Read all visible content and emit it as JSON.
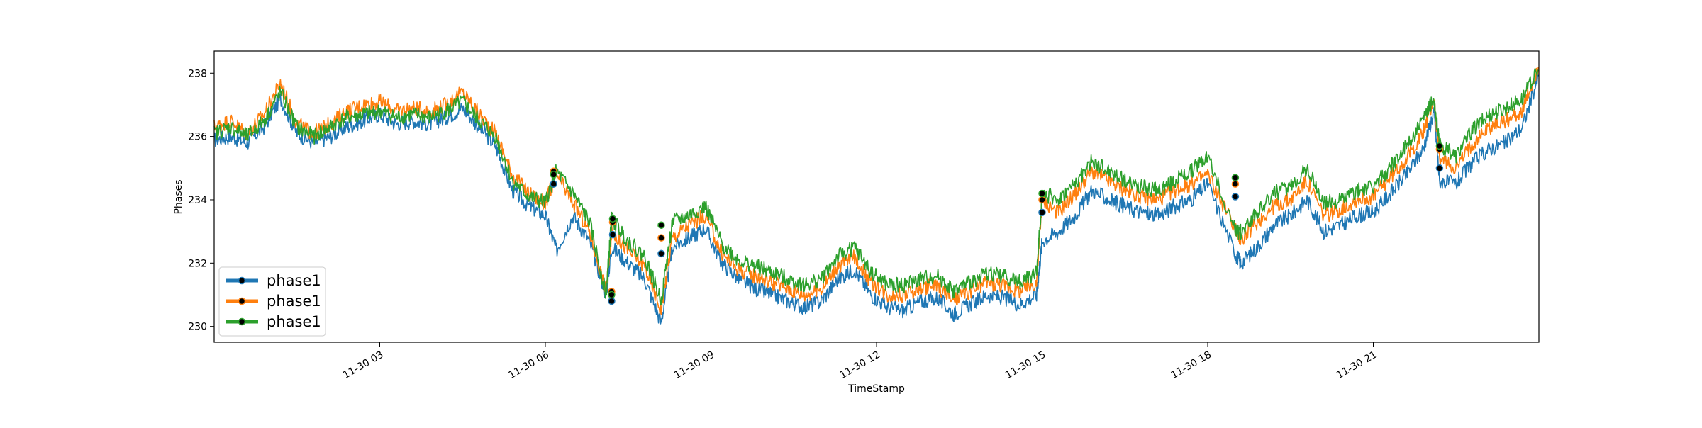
{
  "chart_data": {
    "type": "line",
    "title": "",
    "xlabel": "TimeStamp",
    "ylabel": "Phases",
    "x_range": [
      "11-30 00:00",
      "23:59"
    ],
    "ylim": [
      229.5,
      238.7
    ],
    "grid": false,
    "legend_position": "lower-left",
    "y_ticks": [
      230,
      232,
      234,
      236,
      238
    ],
    "x_ticks": [
      {
        "label": "11-30 03",
        "hour": 3
      },
      {
        "label": "11-30 06",
        "hour": 6
      },
      {
        "label": "11-30 09",
        "hour": 9
      },
      {
        "label": "11-30 12",
        "hour": 12
      },
      {
        "label": "11-30 15",
        "hour": 15
      },
      {
        "label": "11-30 18",
        "hour": 18
      },
      {
        "label": "11-30 21",
        "hour": 21
      }
    ],
    "series": [
      {
        "name": "phase1",
        "color": "#1f77b4",
        "x": [
          0,
          0.3,
          0.6,
          0.9,
          1.2,
          1.5,
          1.8,
          2.1,
          2.4,
          2.7,
          3.0,
          3.3,
          3.6,
          3.9,
          4.2,
          4.5,
          4.8,
          5.1,
          5.4,
          5.7,
          6.0,
          6.2,
          6.5,
          6.8,
          7.1,
          7.2,
          7.5,
          7.8,
          8.1,
          8.3,
          8.6,
          8.9,
          9.2,
          9.5,
          9.8,
          10.1,
          10.4,
          10.7,
          11.0,
          11.3,
          11.6,
          11.9,
          12.2,
          12.5,
          12.8,
          13.1,
          13.4,
          13.7,
          14.0,
          14.3,
          14.6,
          14.9,
          15.0,
          15.3,
          15.6,
          15.9,
          16.2,
          16.5,
          16.8,
          17.1,
          17.4,
          17.7,
          18.0,
          18.5,
          18.6,
          18.9,
          19.2,
          19.5,
          19.8,
          20.1,
          20.4,
          20.7,
          21.0,
          21.3,
          21.6,
          21.9,
          22.1,
          22.2,
          22.5,
          22.8,
          23.1,
          23.4,
          23.7,
          23.99
        ],
        "values": [
          235.9,
          236.0,
          235.8,
          236.3,
          237.2,
          236.1,
          235.8,
          236.0,
          236.3,
          236.5,
          236.7,
          236.4,
          236.5,
          236.4,
          236.6,
          236.9,
          236.3,
          235.7,
          234.3,
          233.8,
          233.5,
          232.4,
          233.5,
          232.7,
          231.0,
          232.5,
          232.0,
          231.5,
          230.1,
          232.5,
          232.8,
          233.1,
          232.0,
          231.5,
          231.2,
          231.0,
          230.8,
          230.6,
          230.8,
          231.5,
          231.8,
          231.0,
          230.6,
          230.5,
          230.8,
          230.9,
          230.4,
          230.7,
          231.0,
          230.9,
          230.7,
          231.0,
          232.7,
          233.0,
          233.5,
          234.3,
          234.0,
          233.8,
          233.6,
          233.5,
          233.8,
          234.0,
          234.5,
          232.3,
          232.0,
          232.5,
          233.2,
          233.5,
          234.0,
          233.0,
          233.2,
          233.5,
          233.6,
          234.2,
          234.8,
          235.6,
          236.8,
          234.6,
          234.5,
          235.2,
          235.6,
          235.8,
          236.3,
          237.9
        ]
      },
      {
        "name": "phase1",
        "color": "#ff7f0e",
        "x": [
          0,
          0.3,
          0.6,
          0.9,
          1.2,
          1.5,
          1.8,
          2.1,
          2.4,
          2.7,
          3.0,
          3.3,
          3.6,
          3.9,
          4.2,
          4.5,
          4.8,
          5.1,
          5.4,
          5.7,
          6.0,
          6.2,
          6.5,
          6.8,
          7.1,
          7.2,
          7.5,
          7.8,
          8.1,
          8.3,
          8.6,
          8.9,
          9.2,
          9.5,
          9.8,
          10.1,
          10.4,
          10.7,
          11.0,
          11.3,
          11.6,
          11.9,
          12.2,
          12.5,
          12.8,
          13.1,
          13.4,
          13.7,
          14.0,
          14.3,
          14.6,
          14.9,
          15.0,
          15.3,
          15.6,
          15.9,
          16.2,
          16.5,
          16.8,
          17.1,
          17.4,
          17.7,
          18.0,
          18.5,
          18.6,
          18.9,
          19.2,
          19.5,
          19.8,
          20.1,
          20.4,
          20.7,
          21.0,
          21.3,
          21.6,
          21.9,
          22.1,
          22.2,
          22.5,
          22.8,
          23.1,
          23.4,
          23.7,
          23.99
        ],
        "values": [
          236.3,
          236.5,
          236.1,
          236.7,
          237.7,
          236.4,
          236.1,
          236.4,
          236.8,
          237.0,
          237.1,
          236.8,
          236.9,
          236.8,
          237.0,
          237.4,
          236.7,
          236.1,
          234.8,
          234.2,
          233.9,
          234.8,
          233.9,
          233.0,
          231.1,
          233.0,
          232.4,
          231.9,
          230.5,
          232.8,
          233.2,
          233.5,
          232.3,
          231.8,
          231.6,
          231.4,
          231.2,
          231.0,
          231.2,
          231.9,
          232.2,
          231.4,
          231.0,
          231.0,
          231.2,
          231.3,
          230.8,
          231.1,
          231.4,
          231.3,
          231.1,
          231.4,
          234.0,
          233.6,
          234.2,
          234.9,
          234.6,
          234.3,
          234.1,
          234.0,
          234.3,
          234.5,
          234.8,
          233.1,
          232.7,
          233.3,
          233.8,
          234.0,
          234.6,
          233.5,
          233.7,
          234.0,
          234.1,
          234.7,
          235.3,
          236.1,
          237.2,
          235.3,
          235.0,
          235.8,
          236.3,
          236.5,
          236.8,
          238.2
        ]
      },
      {
        "name": "phase1",
        "color": "#2ca02c",
        "x": [
          0,
          0.3,
          0.6,
          0.9,
          1.2,
          1.5,
          1.8,
          2.1,
          2.4,
          2.7,
          3.0,
          3.3,
          3.6,
          3.9,
          4.2,
          4.5,
          4.8,
          5.1,
          5.4,
          5.7,
          6.0,
          6.2,
          6.5,
          6.8,
          7.1,
          7.2,
          7.5,
          7.8,
          8.1,
          8.3,
          8.6,
          8.9,
          9.2,
          9.5,
          9.8,
          10.1,
          10.4,
          10.7,
          11.0,
          11.3,
          11.6,
          11.9,
          12.2,
          12.5,
          12.8,
          13.1,
          13.4,
          13.7,
          14.0,
          14.3,
          14.6,
          14.9,
          15.0,
          15.3,
          15.6,
          15.9,
          16.2,
          16.5,
          16.8,
          17.1,
          17.4,
          17.7,
          18.0,
          18.5,
          18.6,
          18.9,
          19.2,
          19.5,
          19.8,
          20.1,
          20.4,
          20.7,
          21.0,
          21.3,
          21.6,
          21.9,
          22.1,
          22.2,
          22.5,
          22.8,
          23.1,
          23.4,
          23.7,
          23.99
        ],
        "values": [
          236.1,
          236.3,
          236.0,
          236.5,
          237.4,
          236.3,
          236.0,
          236.3,
          236.6,
          236.7,
          236.8,
          236.6,
          236.7,
          236.6,
          236.8,
          237.1,
          236.5,
          236.0,
          234.6,
          234.1,
          233.9,
          234.9,
          234.2,
          233.3,
          231.0,
          233.4,
          232.7,
          232.2,
          230.8,
          233.3,
          233.5,
          233.8,
          232.6,
          232.1,
          231.9,
          231.7,
          231.5,
          231.3,
          231.5,
          232.2,
          232.5,
          231.7,
          231.3,
          231.3,
          231.5,
          231.6,
          231.1,
          231.4,
          231.7,
          231.6,
          231.4,
          231.7,
          234.2,
          234.0,
          234.5,
          235.2,
          234.9,
          234.6,
          234.4,
          234.3,
          234.6,
          234.9,
          235.4,
          233.0,
          233.0,
          233.6,
          234.2,
          234.4,
          235.0,
          233.9,
          234.0,
          234.3,
          234.4,
          235.0,
          235.7,
          236.5,
          237.2,
          235.7,
          235.4,
          236.2,
          236.7,
          236.9,
          237.2,
          238.1
        ]
      }
    ],
    "markers": [
      {
        "x": 6.15,
        "values": [
          234.5,
          234.9,
          234.8
        ]
      },
      {
        "x": 7.2,
        "values": [
          230.8,
          231.1,
          231.0
        ]
      },
      {
        "x": 7.22,
        "values": [
          232.9,
          233.3,
          233.4
        ]
      },
      {
        "x": 8.1,
        "values": [
          232.3,
          232.8,
          233.2
        ]
      },
      {
        "x": 15.0,
        "values": [
          233.6,
          234.0,
          234.2
        ]
      },
      {
        "x": 18.5,
        "values": [
          234.1,
          234.5,
          234.7
        ]
      },
      {
        "x": 22.2,
        "values": [
          235.0,
          235.6,
          235.7
        ]
      }
    ],
    "legend": [
      {
        "label": "phase1",
        "color": "#1f77b4"
      },
      {
        "label": "phase1",
        "color": "#ff7f0e"
      },
      {
        "label": "phase1",
        "color": "#2ca02c"
      }
    ]
  }
}
